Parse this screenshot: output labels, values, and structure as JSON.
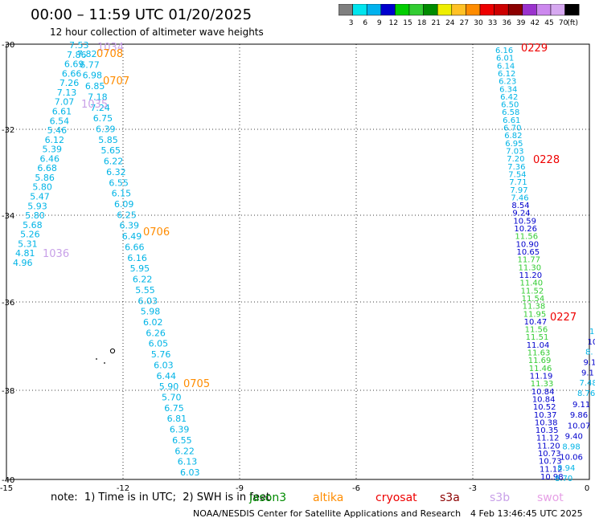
{
  "header": {
    "title": "00:00 – 11:59 UTC 01/20/2025",
    "subtitle": "12 hour collection of altimeter wave heights"
  },
  "colorbar": {
    "colors": [
      "#7f7f7f",
      "#00e5ee",
      "#00b2ee",
      "#0000cd",
      "#00cd00",
      "#32cd32",
      "#008b00",
      "#eeee00",
      "#ffc125",
      "#ff8c00",
      "#ee0000",
      "#cd0000",
      "#8b0000",
      "#9a32cd",
      "#cc88ee",
      "#d6a8f0",
      "#000000"
    ],
    "labels": [
      "3",
      "6",
      "9",
      "12",
      "15",
      "18",
      "21",
      "24",
      "27",
      "30",
      "33",
      "36",
      "39",
      "42",
      "45",
      "70",
      "(ft)"
    ]
  },
  "axes": {
    "x_ticks": [
      "-15",
      "-12",
      "-9",
      "-6",
      "-3",
      "0"
    ],
    "y_ticks": [
      "-30",
      "-32",
      "-34",
      "-36",
      "-38",
      "-40"
    ]
  },
  "track_times": [
    {
      "text": "1034",
      "color": "#c8a0e8"
    },
    {
      "text": "0708",
      "color": "#ff8c00"
    },
    {
      "text": "0707",
      "color": "#ff8c00"
    },
    {
      "text": "1035",
      "color": "#c8a0e8"
    },
    {
      "text": "1036",
      "color": "#c8a0e8"
    },
    {
      "text": "0706",
      "color": "#ff8c00"
    },
    {
      "text": "0705",
      "color": "#ff8c00"
    },
    {
      "text": "0229",
      "color": "#ee0000"
    },
    {
      "text": "0228",
      "color": "#ee0000"
    },
    {
      "text": "0227",
      "color": "#ee0000"
    }
  ],
  "legend": {
    "note": "note:  1) Time is in UTC;  2) SWH is in feet",
    "missions": [
      {
        "text": "jason3",
        "color": "#008b00"
      },
      {
        "text": "altika",
        "color": "#ff8c00"
      },
      {
        "text": "cryosat",
        "color": "#ee0000"
      },
      {
        "text": "s3a",
        "color": "#8b0000"
      },
      {
        "text": "s3b",
        "color": "#c8a0e8"
      },
      {
        "text": "swot",
        "color": "#e6a0e6"
      }
    ]
  },
  "footer": {
    "credit": "NOAA/NESDIS Center for Satellite Applications and Research",
    "date": "4 Feb 13:46:45 UTC 2025"
  },
  "tracks": {
    "track_a": [
      "7.53",
      "7.86",
      "6.69",
      "6.66",
      "7.26",
      "7.13",
      "7.07",
      "6.61",
      "6.54",
      "5.46",
      "6.12",
      "5.39",
      "6.46",
      "6.68",
      "5.86",
      "5.80",
      "5.47",
      "5.93",
      "5.80",
      "5.68",
      "5.26",
      "5.31",
      "4.81",
      "4.96"
    ],
    "track_b": [
      "7.82",
      "6.77",
      "6.98",
      "6.85",
      "7.18",
      "7.24",
      "6.75",
      "6.39",
      "5.85",
      "5.65",
      "6.22",
      "6.32",
      "6.55",
      "6.15",
      "6.09",
      "6.25",
      "6.39",
      "6.49",
      "6.66",
      "6.16",
      "5.95",
      "6.22",
      "5.55",
      "6.03",
      "5.98",
      "6.02",
      "6.26",
      "6.05",
      "5.76",
      "6.03",
      "6.44",
      "5.90",
      "5.70",
      "6.75",
      "6.81",
      "6.39",
      "6.55",
      "6.22",
      "6.13",
      "6.03"
    ],
    "track_c": [
      "6.16",
      "6.01",
      "6.14",
      "6.12",
      "6.23",
      "6.34",
      "6.42",
      "6.50",
      "6.58",
      "6.61",
      "6.70",
      "6.82",
      "6.95",
      "7.03",
      "7.20",
      "7.36",
      "7.54",
      "7.71",
      "7.97",
      "7.46",
      "8.54",
      "9.24",
      "10.59",
      "10.26",
      "11.56",
      "10.90",
      "10.65",
      "11.77",
      "11.30",
      "11.20",
      "11.40",
      "11.52",
      "11.54",
      "11.38",
      "11.95",
      "10.47",
      "11.56",
      "11.51",
      "11.04",
      "11.63",
      "11.69",
      "11.46",
      "11.19",
      "11.33",
      "10.84",
      "10.84",
      "10.52",
      "10.37",
      "10.38",
      "10.35",
      "11.12",
      "11.20",
      "10.73",
      "10.73",
      "11.12",
      "10.98"
    ],
    "track_d": [
      "9.11",
      "9.86",
      "10.07",
      "9.40",
      "8.98",
      "10.06",
      "8.94",
      "8.70"
    ],
    "track_e": [
      "1",
      "10",
      "8.",
      "9.1",
      "9.1",
      "7.48",
      "8.76"
    ]
  }
}
